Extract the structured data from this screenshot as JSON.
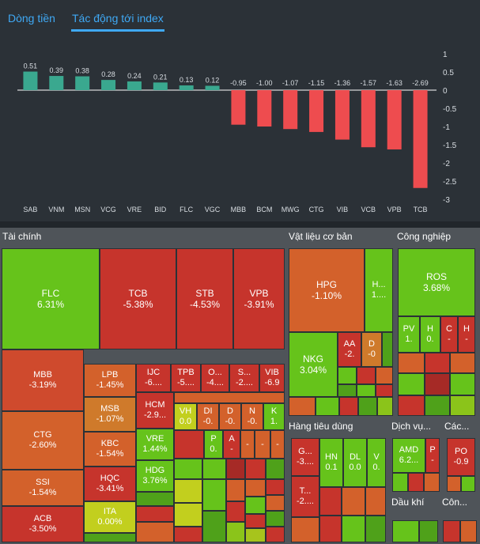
{
  "tabs": {
    "dongtien": "Dòng tiền",
    "tacdong": "Tác động tới index"
  },
  "chart_data": {
    "type": "bar",
    "categories": [
      "SAB",
      "VNM",
      "MSN",
      "VCG",
      "VRE",
      "BID",
      "FLC",
      "VGC",
      "MBB",
      "BCM",
      "MWG",
      "CTG",
      "VIB",
      "VCB",
      "VPB",
      "TCB"
    ],
    "values": [
      0.51,
      0.39,
      0.38,
      0.28,
      0.24,
      0.21,
      0.13,
      0.12,
      -0.95,
      -1.0,
      -1.07,
      -1.15,
      -1.36,
      -1.57,
      -1.63,
      -2.69
    ],
    "value_labels": [
      "0.51",
      "0.39",
      "0.38",
      "0.28",
      "0.24",
      "0.21",
      "0.13",
      "0.12",
      "-0.95",
      "-1.00",
      "-1.07",
      "-1.15",
      "-1.36",
      "-1.57",
      "-1.63",
      "-2.69"
    ],
    "ylim": [
      -3,
      1
    ],
    "yticks": [
      1,
      0.5,
      0,
      -0.5,
      -1,
      -1.5,
      -2,
      -2.5,
      -3
    ],
    "ytick_labels": [
      "1",
      "0.5",
      "0",
      "-0.5",
      "-1",
      "-1.5",
      "-2",
      "-2.5",
      "-3"
    ],
    "positive_color": "#3aa88f",
    "negative_color": "#ee4c4f"
  },
  "heatmap": {
    "sectors": {
      "taichinh": "Tài chính",
      "vatlieu": "Vật liệu cơ bản",
      "congnghiep": "Công nghiệp",
      "hangtieudung": "Hàng tiêu dùng",
      "dichvu": "Dịch vụ...",
      "cac": "Các...",
      "daukhi": "Dầu khí",
      "con": "Côn..."
    },
    "cells": {
      "flc": {
        "sym": "FLC",
        "pct": "6.31%"
      },
      "tcb": {
        "sym": "TCB",
        "pct": "-5.38%"
      },
      "stb": {
        "sym": "STB",
        "pct": "-4.53%"
      },
      "vpb": {
        "sym": "VPB",
        "pct": "-3.91%"
      },
      "mbb": {
        "sym": "MBB",
        "pct": "-3.19%"
      },
      "ctg": {
        "sym": "CTG",
        "pct": "-2.60%"
      },
      "ssi": {
        "sym": "SSI",
        "pct": "-1.54%"
      },
      "acb": {
        "sym": "ACB",
        "pct": "-3.50%"
      },
      "lpb": {
        "sym": "LPB",
        "pct": "-1.45%"
      },
      "msb": {
        "sym": "MSB",
        "pct": "-1.07%"
      },
      "kbc": {
        "sym": "KBC",
        "pct": "-1.54%"
      },
      "hqc": {
        "sym": "HQC",
        "pct": "-3.41%"
      },
      "ita": {
        "sym": "ITA",
        "pct": "0.00%"
      },
      "ijc": {
        "sym": "IJC",
        "pct": "-6...."
      },
      "tpb": {
        "sym": "TPB",
        "pct": "-5...."
      },
      "o": {
        "sym": "O...",
        "pct": "-4...."
      },
      "s": {
        "sym": "S...",
        "pct": "-2...."
      },
      "vib": {
        "sym": "VIB",
        "pct": "-6.9"
      },
      "hcm": {
        "sym": "HCM",
        "pct": "-2.9..."
      },
      "vh": {
        "sym": "VH",
        "pct": "0.0"
      },
      "di": {
        "sym": "DI",
        "pct": "-0."
      },
      "d": {
        "sym": "D",
        "pct": "-0."
      },
      "n": {
        "sym": "N",
        "pct": "-0."
      },
      "k": {
        "sym": "K",
        "pct": "1."
      },
      "vre": {
        "sym": "VRE",
        "pct": "1.44%"
      },
      "hdg": {
        "sym": "HDG",
        "pct": "3.76%"
      },
      "p": {
        "sym": "P",
        "pct": "0."
      },
      "a": {
        "sym": "A",
        "pct": "-"
      },
      "dash1": {
        "pct": "-"
      },
      "dash2": {
        "pct": "-"
      },
      "dash3": {
        "pct": "-"
      },
      "hpg": {
        "sym": "HPG",
        "pct": "-1.10%"
      },
      "h": {
        "sym": "H...",
        "pct": "1...."
      },
      "nkg": {
        "sym": "NKG",
        "pct": "3.04%"
      },
      "aa": {
        "sym": "AA",
        "pct": "-2."
      },
      "dd": {
        "sym": "D",
        "pct": "-0"
      },
      "ros": {
        "sym": "ROS",
        "pct": "3.68%"
      },
      "pv": {
        "sym": "PV",
        "pct": "1."
      },
      "h0": {
        "sym": "H",
        "pct": "0."
      },
      "c": {
        "sym": "C",
        "pct": "-"
      },
      "hh": {
        "sym": "H",
        "pct": "-"
      },
      "g": {
        "sym": "G...",
        "pct": "-3...."
      },
      "hn": {
        "sym": "HN",
        "pct": "0.1"
      },
      "dl": {
        "sym": "DL",
        "pct": "0.0"
      },
      "v": {
        "sym": "V",
        "pct": "0."
      },
      "t": {
        "sym": "T...",
        "pct": "-2...."
      },
      "amd": {
        "sym": "AMD",
        "pct": "6.2..."
      },
      "pp": {
        "sym": "P",
        "pct": "-"
      },
      "po": {
        "sym": "PO",
        "pct": "-0.9"
      }
    }
  }
}
